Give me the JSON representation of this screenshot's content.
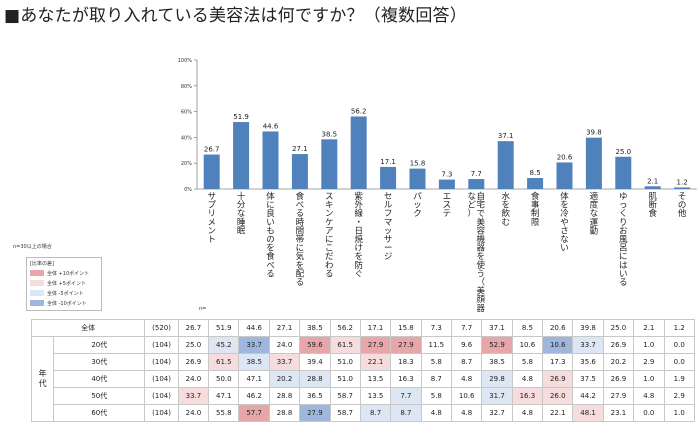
{
  "title": "■あなたが取り入れている美容法は何ですか？（複数回答）",
  "note": "n=30以上の場合",
  "n_label": "n=",
  "legend": {
    "title": "[比率の差]",
    "items": [
      {
        "text": "全体  +10ポイント",
        "color": "#e7a6aa"
      },
      {
        "text": "全体  +5ポイント",
        "color": "#f7dcdd"
      },
      {
        "text": "全体  -5ポイント",
        "color": "#dde6f3"
      },
      {
        "text": "全体  -10ポイント",
        "color": "#9fb7dc"
      }
    ]
  },
  "chart_data": {
    "type": "bar",
    "categories": [
      "サプリメント",
      "十分な睡眠",
      "体に良いものを食べる",
      "食べる時間帯に気を配る",
      "スキンケアにこだわる",
      "紫外線・日焼けを防ぐ",
      "セルフマッサージ",
      "パック",
      "エステ",
      "自宅で美容機器を使う（美顔器など）",
      "水を飲む",
      "食事制限",
      "体を冷やさない",
      "適度な運動",
      "ゆっくりお風呂にはいる",
      "肌断食",
      "その他"
    ],
    "values": [
      26.7,
      51.9,
      44.6,
      27.1,
      38.5,
      56.2,
      17.1,
      15.8,
      7.3,
      7.7,
      37.1,
      8.5,
      20.6,
      39.8,
      25.0,
      2.1,
      1.2
    ],
    "value_labels": [
      "26.7",
      "51.9",
      "44.6",
      "27.1",
      "38.5",
      "56.2",
      "17.1",
      "15.8",
      "7.3",
      "7.7",
      "37.1",
      "8.5",
      "20.6",
      "39.8",
      "25.0",
      "2.1",
      "1.2"
    ],
    "yticks": [
      "0%",
      "20%",
      "40%",
      "60%",
      "80%",
      "100%"
    ],
    "ylim": [
      0,
      100
    ],
    "bar_color": "#4f81bd",
    "colors": {
      "hi1": "#e7a6aa",
      "hi2": "#f7dcdd",
      "lo1": "#9fb7dc",
      "lo2": "#dde6f3"
    }
  },
  "table": {
    "group_label": "年代",
    "rows": [
      {
        "label": "全体",
        "n": "(520)",
        "values": [
          "26.7",
          "51.9",
          "44.6",
          "27.1",
          "38.5",
          "56.2",
          "17.1",
          "15.8",
          "7.3",
          "7.7",
          "37.1",
          "8.5",
          "20.6",
          "39.8",
          "25.0",
          "2.1",
          "1.2"
        ],
        "marks": [
          "",
          "",
          "",
          "",
          "",
          "",
          "",
          "",
          "",
          "",
          "",
          "",
          "",
          "",
          "",
          "",
          ""
        ]
      },
      {
        "label": "20代",
        "n": "(104)",
        "values": [
          "25.0",
          "45.2",
          "33.7",
          "24.0",
          "59.6",
          "61.5",
          "27.9",
          "27.9",
          "11.5",
          "9.6",
          "52.9",
          "10.6",
          "10.6",
          "33.7",
          "26.9",
          "1.0",
          "0.0"
        ],
        "marks": [
          "",
          "lo2",
          "lo1",
          "",
          "hi1",
          "hi2",
          "hi1",
          "hi1",
          "",
          "",
          "hi1",
          "",
          "lo1",
          "lo2",
          "",
          "",
          ""
        ]
      },
      {
        "label": "30代",
        "n": "(104)",
        "values": [
          "26.9",
          "61.5",
          "38.5",
          "33.7",
          "39.4",
          "51.0",
          "22.1",
          "18.3",
          "5.8",
          "8.7",
          "38.5",
          "5.8",
          "17.3",
          "35.6",
          "20.2",
          "2.9",
          "0.0"
        ],
        "marks": [
          "",
          "hi2",
          "lo2",
          "hi2",
          "",
          "",
          "hi2",
          "",
          "",
          "",
          "",
          "",
          "",
          "",
          "",
          "",
          ""
        ]
      },
      {
        "label": "40代",
        "n": "(104)",
        "values": [
          "24.0",
          "50.0",
          "47.1",
          "20.2",
          "28.8",
          "51.0",
          "13.5",
          "16.3",
          "8.7",
          "4.8",
          "29.8",
          "4.8",
          "26.9",
          "37.5",
          "26.9",
          "1.0",
          "1.9"
        ],
        "marks": [
          "",
          "",
          "",
          "lo2",
          "lo2",
          "",
          "",
          "",
          "",
          "",
          "lo2",
          "",
          "hi2",
          "",
          "",
          "",
          ""
        ]
      },
      {
        "label": "50代",
        "n": "(104)",
        "values": [
          "33.7",
          "47.1",
          "46.2",
          "28.8",
          "36.5",
          "58.7",
          "13.5",
          "7.7",
          "5.8",
          "10.6",
          "31.7",
          "16.3",
          "26.0",
          "44.2",
          "27.9",
          "4.8",
          "2.9"
        ],
        "marks": [
          "hi2",
          "",
          "",
          "",
          "",
          "",
          "",
          "lo2",
          "",
          "",
          "lo2",
          "hi2",
          "hi2",
          "",
          "",
          "",
          ""
        ]
      },
      {
        "label": "60代",
        "n": "(104)",
        "values": [
          "24.0",
          "55.8",
          "57.7",
          "28.8",
          "27.9",
          "58.7",
          "8.7",
          "8.7",
          "4.8",
          "4.8",
          "32.7",
          "4.8",
          "22.1",
          "48.1",
          "23.1",
          "0.0",
          "1.0"
        ],
        "marks": [
          "",
          "",
          "hi1",
          "",
          "lo1",
          "",
          "lo2",
          "lo2",
          "",
          "",
          "",
          "",
          "",
          "hi2",
          "",
          "",
          ""
        ]
      }
    ]
  }
}
